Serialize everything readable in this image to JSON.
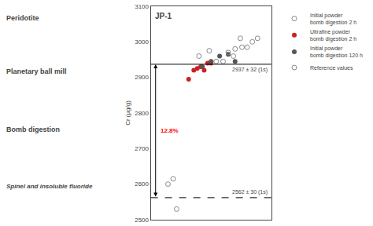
{
  "chart_data": {
    "type": "scatter",
    "title": "JP-1",
    "y_label": "Cr (µg/g)",
    "xlim": [
      0,
      7.0
    ],
    "ylim": [
      2500,
      3100
    ],
    "yticks": [
      2500,
      2600,
      2700,
      2800,
      2900,
      3000,
      3100
    ],
    "tick_labels": "y",
    "grid": false,
    "legend": "right",
    "series": [
      {
        "name": "Initial powder\nbomb digestion 2 h",
        "color": "#888888",
        "marker": "open circle",
        "x": [
          1.0,
          1.3,
          1.5,
          2.8,
          3.4,
          3.8,
          4.2,
          4.8,
          5.2
        ],
        "values": [
          2600,
          2615,
          2530,
          2960,
          2975,
          2945,
          2945,
          2960,
          3010
        ]
      },
      {
        "name": "Ultrafine powder\nbomb digestion 2 h",
        "color": "#cc2222",
        "marker": "circle",
        "x": [
          2.2,
          2.5,
          2.7,
          2.9,
          3.1,
          3.3,
          3.5
        ],
        "values": [
          2895,
          2920,
          2925,
          2930,
          2920,
          2940,
          2940
        ]
      },
      {
        "name": "Initial powder\nbomb digestion 120 h",
        "color": "#555555",
        "marker": "circle",
        "x": [
          3.0,
          3.5,
          4.0,
          4.5,
          4.9
        ],
        "values": [
          2930,
          2945,
          2960,
          2965,
          2945
        ]
      },
      {
        "name": "Reference values",
        "color": "#888888",
        "marker": "open circle",
        "x": [
          4.5,
          4.9,
          5.3,
          5.6,
          5.9,
          6.2
        ],
        "values": [
          2970,
          2980,
          2985,
          2985,
          3000,
          3010
        ]
      }
    ],
    "reference_lines": [
      {
        "value": 2937,
        "label": "2937 ± 32 (1s)",
        "line_style": "solid"
      },
      {
        "value": 2562,
        "label": "2562 ± 30 (1s)",
        "line_style": "dashed"
      }
    ],
    "difference_label": {
      "text": "12.8%",
      "color": "red"
    },
    "annotations": [
      "Peridotite",
      "Planetary ball mill",
      "Bomb digestion",
      "Spinel and insoluble fluoride"
    ]
  }
}
